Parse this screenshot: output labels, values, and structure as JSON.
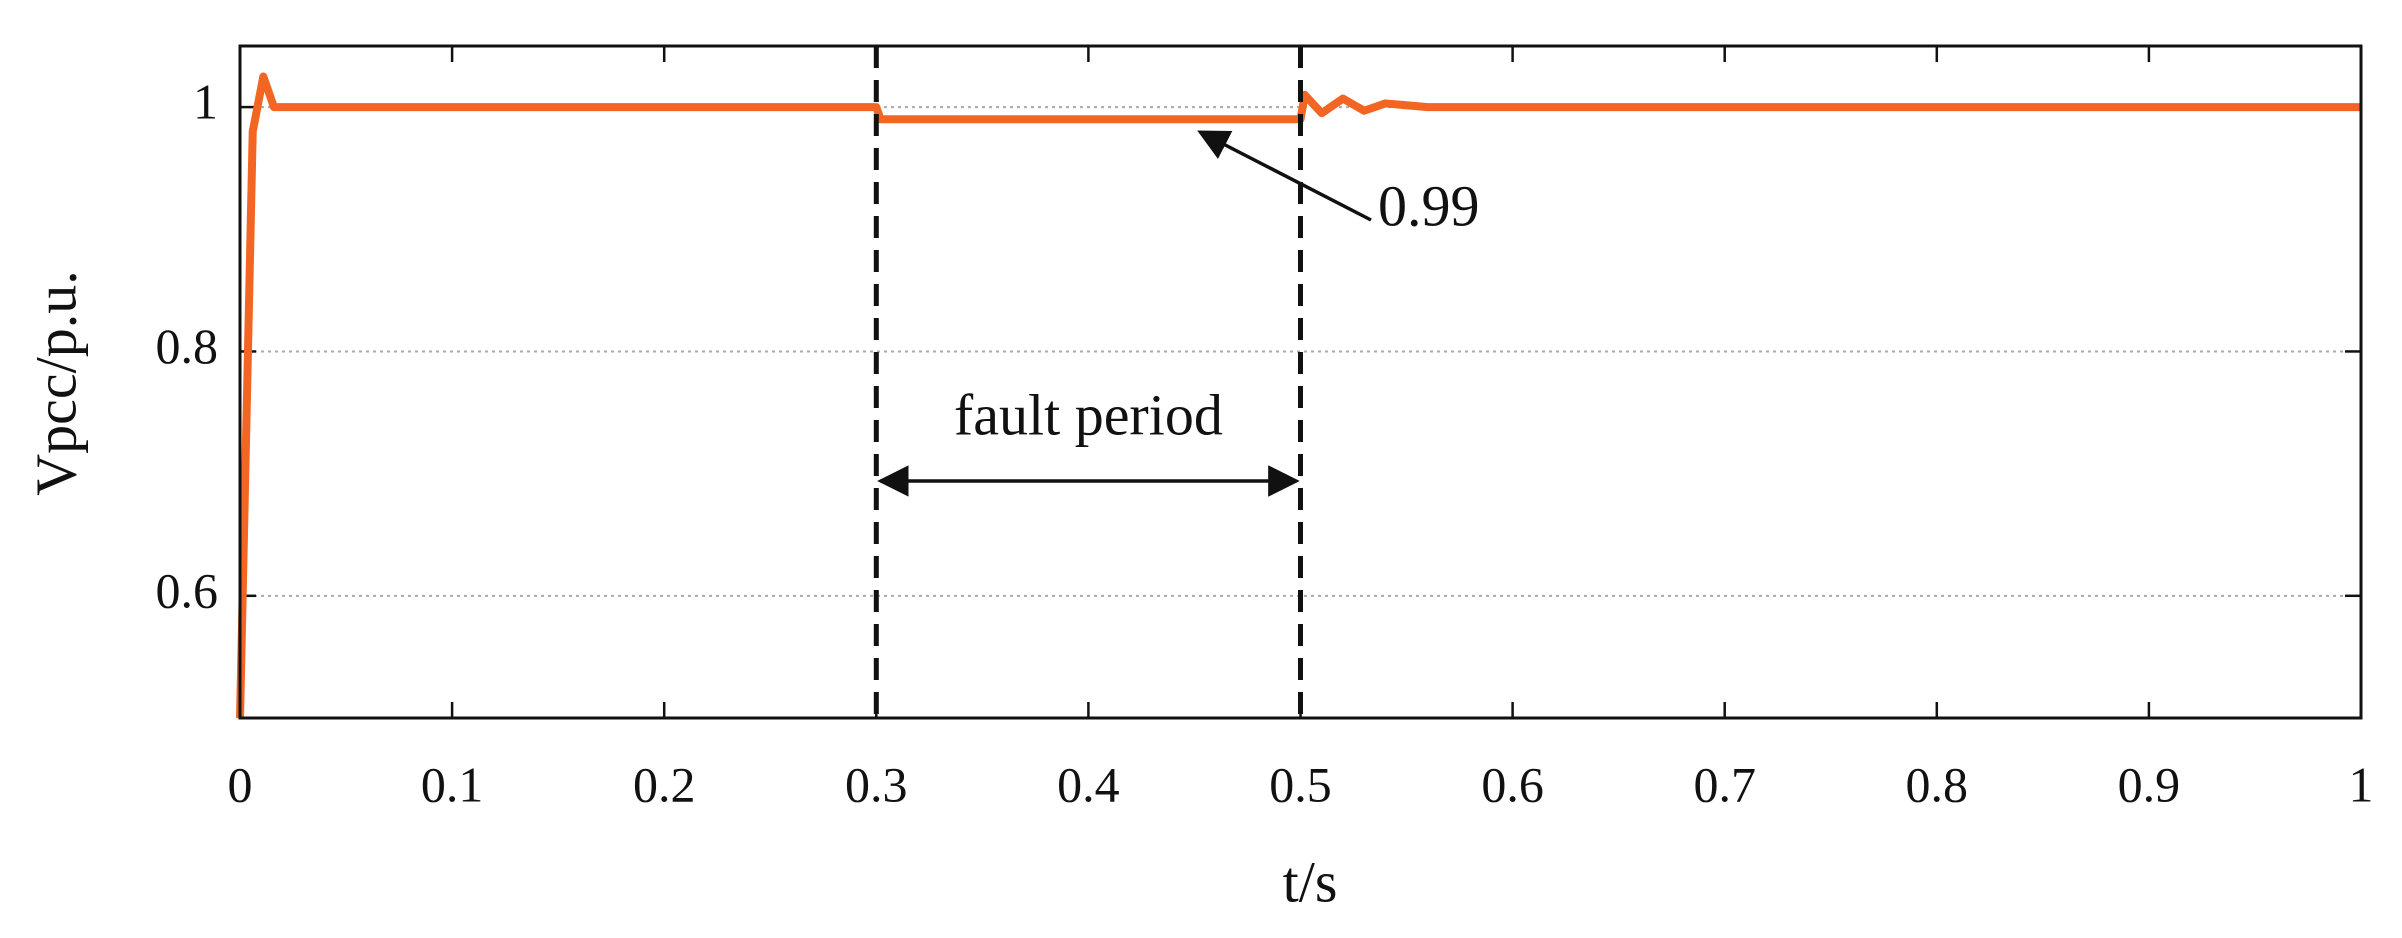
{
  "chart_data": {
    "type": "line",
    "xlabel": "t/s",
    "ylabel": "Vpcc/p.u.",
    "x": [
      0,
      0.006,
      0.011,
      0.016,
      0.022,
      0.3,
      0.302,
      0.5,
      0.502,
      0.51,
      0.52,
      0.53,
      0.54,
      0.56,
      1
    ],
    "series": [
      {
        "name": "Vpcc",
        "color": "#f26522",
        "values": [
          0.5,
          0.98,
          1.025,
          1.0,
          1.0,
          1.0,
          0.99,
          0.99,
          1.01,
          0.995,
          1.007,
          0.997,
          1.003,
          1.0,
          1.0
        ]
      }
    ],
    "xlim": [
      0,
      1
    ],
    "ylim": [
      0.5,
      1.05
    ],
    "xticks": [
      0,
      0.1,
      0.2,
      0.3,
      0.4,
      0.5,
      0.6,
      0.7,
      0.8,
      0.9,
      1
    ],
    "yticks": [
      0.6,
      0.8,
      1
    ],
    "grid": true,
    "vlines": [
      0.3,
      0.5
    ],
    "annotations": [
      "0.99",
      "fault period"
    ]
  }
}
